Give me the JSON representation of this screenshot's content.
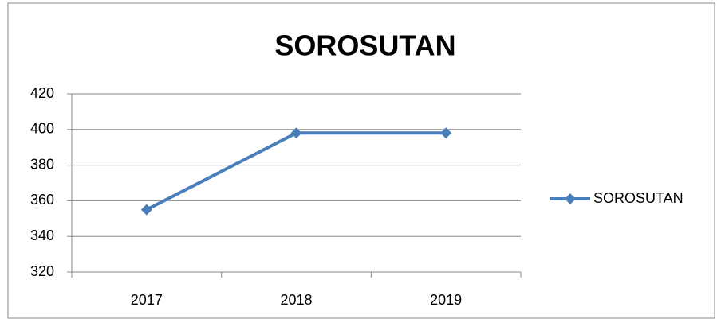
{
  "chart_data": {
    "type": "line",
    "title": "SOROSUTAN",
    "categories": [
      "2017",
      "2018",
      "2019"
    ],
    "series": [
      {
        "name": "SOROSUTAN",
        "color": "#4a7ebb",
        "values": [
          355,
          398,
          398
        ]
      }
    ],
    "ylim": [
      320,
      420
    ],
    "yticks": [
      320,
      340,
      360,
      380,
      400,
      420
    ],
    "grid": true,
    "legend": "right"
  }
}
